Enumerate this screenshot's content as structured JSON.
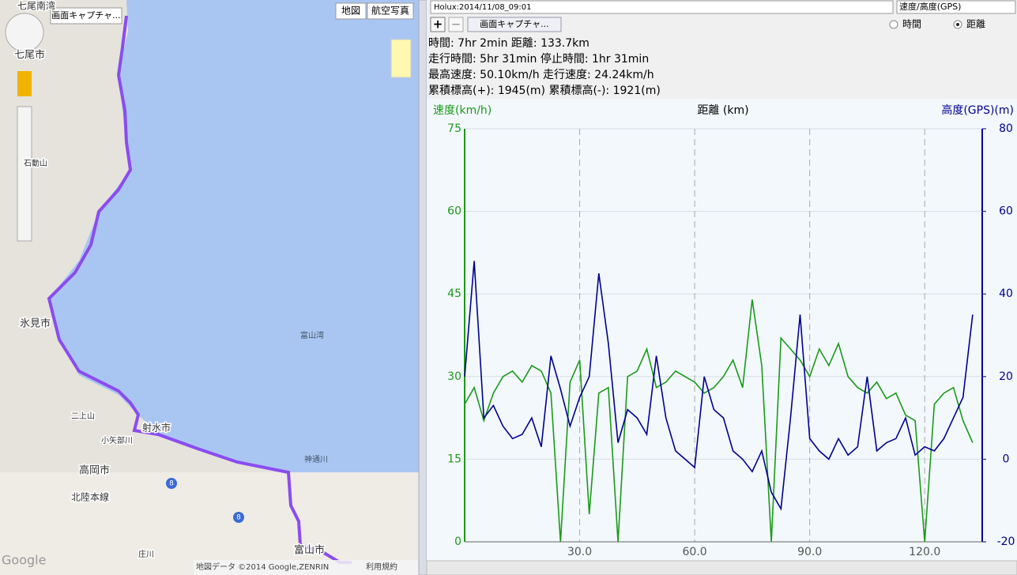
{
  "map": {
    "capture": "画面キャプチャ...",
    "map_button": "地図",
    "satellite_button": "航空写真",
    "labels": [
      "七尾南湾",
      "七尾市",
      "石動山",
      "氷見市",
      "富山湾",
      "二上山",
      "小矢部川",
      "射水市",
      "神通川",
      "高岡市",
      "北陸本線",
      "庄川",
      "富山市",
      "8",
      "8"
    ],
    "footer": "地図データ ©2014 Google,ZENRIN",
    "terms": "利用規約",
    "logo": "Google"
  },
  "toolbar": {
    "track": "Holux:2014/11/08_09:01",
    "mode": "速度/高度(GPS)",
    "plus": "+",
    "minus": "−",
    "capture": "画面キャプチャ...",
    "radio": [
      "時間",
      "距離"
    ]
  },
  "stats": [
    "時間: 7hr 2min 距離: 133.7km",
    "走行時間: 5hr 31min 停止時間: 1hr 31min",
    "最高速度: 50.10km/h 走行速度: 24.24km/h",
    "累積標高(+): 1945(m) 累積標高(-): 1921(m)"
  ],
  "chart_data": {
    "type": "line",
    "x_label": "距離 (km)",
    "y_label": "速度(km/h)",
    "y2_label": "高度(GPS)(m)",
    "x": [
      0,
      2.5,
      5,
      7.5,
      10,
      12.5,
      15,
      17.5,
      20,
      22.5,
      25,
      27.5,
      30,
      32.5,
      35,
      37.5,
      40,
      42.5,
      45,
      47.5,
      50,
      52.5,
      55,
      57.5,
      60,
      62.5,
      65,
      67.5,
      70,
      72.5,
      75,
      77.5,
      80,
      82.5,
      85,
      87.5,
      90,
      92.5,
      95,
      97.5,
      100,
      102.5,
      105,
      107.5,
      110,
      112.5,
      115,
      117.5,
      120,
      122.5,
      125,
      127.5,
      130,
      132.5
    ],
    "series": [
      {
        "name": "速度",
        "color": "#1a9a1a",
        "values": [
          25,
          28,
          22,
          27,
          30,
          31,
          29,
          32,
          31,
          27,
          0,
          29,
          33,
          5,
          27,
          28,
          0,
          30,
          31,
          35,
          28,
          29,
          31,
          30,
          29,
          27,
          28,
          30,
          33,
          28,
          44,
          32,
          0,
          37,
          35,
          33,
          30,
          35,
          32,
          36,
          30,
          28,
          27,
          29,
          26,
          27,
          23,
          22,
          0,
          25,
          27,
          28,
          22,
          18
        ]
      },
      {
        "name": "高度",
        "color": "#000090",
        "axis": "y2",
        "values": [
          20,
          48,
          10,
          13,
          8,
          5,
          6,
          10,
          3,
          25,
          17,
          8,
          15,
          20,
          45,
          28,
          4,
          12,
          10,
          6,
          25,
          10,
          2,
          0,
          -2,
          20,
          12,
          10,
          2,
          0,
          -3,
          2,
          -8,
          -12,
          10,
          35,
          5,
          2,
          0,
          5,
          1,
          3,
          20,
          2,
          4,
          5,
          10,
          1,
          3,
          2,
          5,
          10,
          15,
          35
        ]
      }
    ],
    "xlim": [
      0,
      135
    ],
    "xticks": [
      {
        "value": 30,
        "label": "30.0"
      },
      {
        "value": 60,
        "label": "60.0"
      },
      {
        "value": 90,
        "label": "90.0"
      },
      {
        "value": 120,
        "label": "120.0"
      }
    ],
    "ylim": [
      0,
      75
    ],
    "yticks": [
      0,
      15,
      30,
      45,
      60,
      75
    ],
    "y2lim": [
      -20,
      80
    ],
    "y2ticks": [
      -20,
      0,
      20,
      40,
      60,
      80
    ],
    "grid": true
  }
}
